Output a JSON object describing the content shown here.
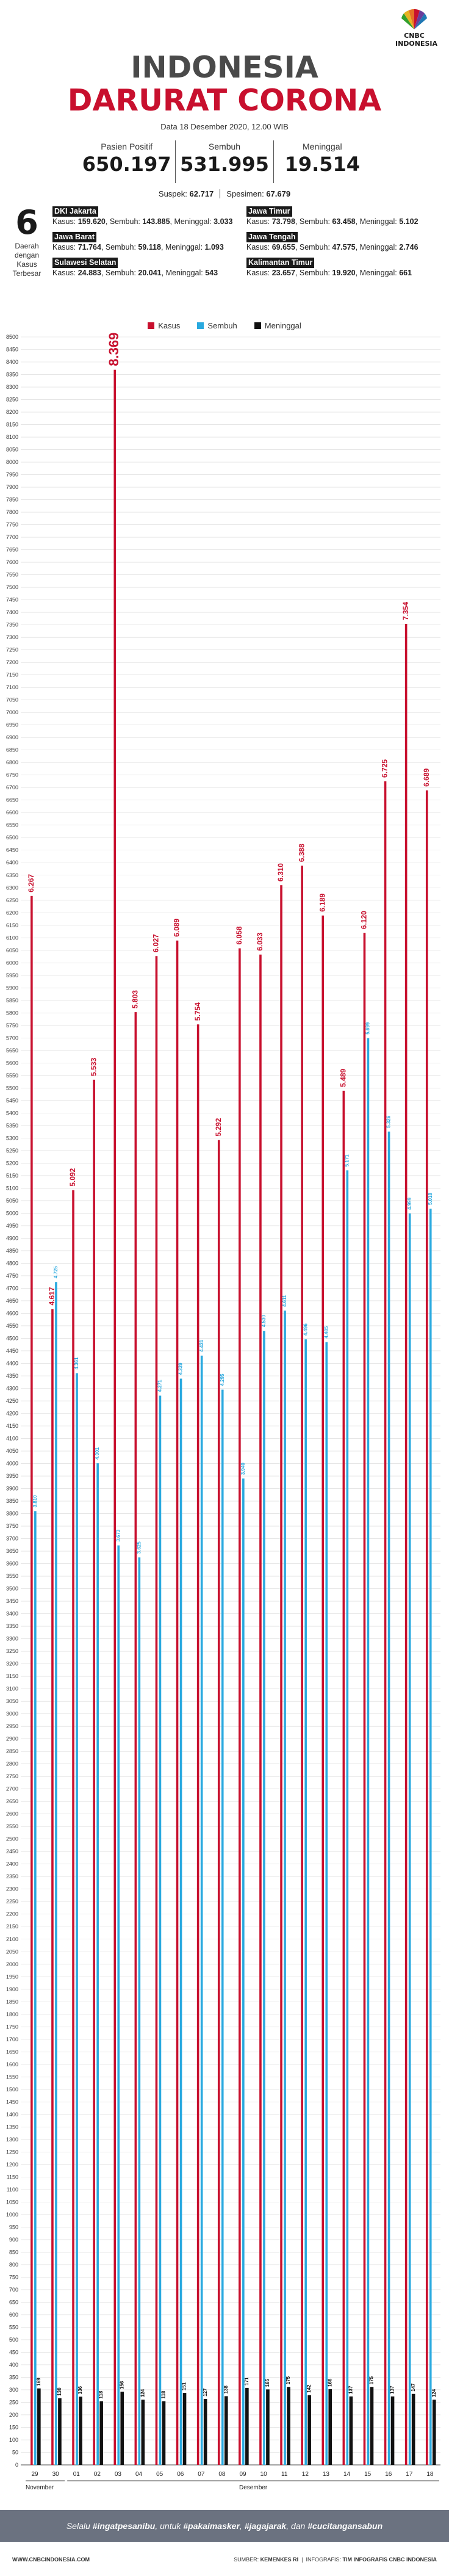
{
  "brand": {
    "logo": "CNBC INDONESIA",
    "logo_icon": "peacock-icon"
  },
  "header": {
    "title_line1": "INDONESIA",
    "title_line2": "DARURAT CORONA",
    "date": "Data 18 Desember 2020, 12.00 WIB"
  },
  "stats": [
    {
      "label": "Pasien Positif",
      "value": "650.197"
    },
    {
      "label": "Sembuh",
      "value": "531.995"
    },
    {
      "label": "Meninggal",
      "value": "19.514"
    }
  ],
  "sub": {
    "suspek_label": "Suspek:",
    "suspek_value": "62.717",
    "spesimen_label": "Spesimen:",
    "spesimen_value": "67.679"
  },
  "rank": {
    "number": "6",
    "label": "Daerah dengan Kasus Terbesar"
  },
  "provinces": [
    {
      "name": "DKI Jakarta",
      "kasus": "159.620",
      "sembuh": "143.885",
      "meninggal": "3.033"
    },
    {
      "name": "Jawa Timur",
      "kasus": "73.798",
      "sembuh": "63.458",
      "meninggal": "5.102"
    },
    {
      "name": "Jawa Barat",
      "kasus": "71.764",
      "sembuh": "59.118",
      "meninggal": "1.093"
    },
    {
      "name": "Jawa Tengah",
      "kasus": "69.655",
      "sembuh": "47.575",
      "meninggal": "2.746"
    },
    {
      "name": "Sulawesi Selatan",
      "kasus": "24.883",
      "sembuh": "20.041",
      "meninggal": "543"
    },
    {
      "name": "Kalimantan Timur",
      "kasus": "23.657",
      "sembuh": "19.920",
      "meninggal": "661"
    }
  ],
  "province_labels": {
    "kasus": "Kasus:",
    "sembuh": "Sembuh:",
    "meninggal": "Meninggal:"
  },
  "colors": {
    "kasus": "#c8102e",
    "sembuh": "#29a9df",
    "meninggal": "#111111",
    "grid": "#d8d8d8"
  },
  "chart_data": {
    "type": "bar",
    "categories": [
      "29",
      "30",
      "01",
      "02",
      "03",
      "04",
      "05",
      "06",
      "07",
      "08",
      "09",
      "10",
      "11",
      "12",
      "13",
      "14",
      "15",
      "16",
      "17",
      "18"
    ],
    "month_groups": [
      {
        "label": "November",
        "from": "29",
        "to": "30"
      },
      {
        "label": "Desember",
        "from": "01",
        "to": "18"
      }
    ],
    "series": [
      {
        "name": "Kasus",
        "values": [
          6267,
          4617,
          5092,
          5533,
          8369,
          5803,
          6027,
          6089,
          5754,
          5292,
          6058,
          6033,
          6310,
          6388,
          6189,
          5489,
          6120,
          6725,
          7354,
          6689
        ],
        "labels": [
          "6.267",
          "4.617",
          "5.092",
          "5.533",
          "8.369",
          "5.803",
          "6.027",
          "6.089",
          "5.754",
          "5.292",
          "6.058",
          "6.033",
          "6.310",
          "6.388",
          "6.189",
          "5.489",
          "6.120",
          "6.725",
          "7.354",
          "6.689"
        ]
      },
      {
        "name": "Sembuh",
        "values": [
          3810,
          4725,
          4361,
          4001,
          3673,
          3625,
          4271,
          4339,
          4431,
          4295,
          3940,
          4530,
          4611,
          4496,
          4485,
          5171,
          5699,
          5326,
          4999,
          5018
        ],
        "labels": [
          "3.810",
          "4.725",
          "4.361",
          "4.001",
          "3.673",
          "3.625",
          "4.271",
          "4.339",
          "4.431",
          "4.295",
          "3.940",
          "4.530",
          "4.611",
          "4.496",
          "4.485",
          "5.171",
          "5.699",
          "5.326",
          "4.999",
          "5.018"
        ]
      },
      {
        "name": "Meninggal",
        "values": [
          169,
          130,
          136,
          118,
          156,
          124,
          118,
          151,
          127,
          138,
          171,
          165,
          175,
          142,
          166,
          137,
          175,
          137,
          147,
          124
        ],
        "labels": [
          "169",
          "130",
          "136",
          "118",
          "156",
          "124",
          "118",
          "151",
          "127",
          "138",
          "171",
          "165",
          "175",
          "142",
          "166",
          "137",
          "175",
          "137",
          "147",
          "124"
        ]
      }
    ],
    "ylim": [
      0,
      8500
    ],
    "ytick_step": 50,
    "grid": true,
    "legend_position": "top-center"
  },
  "footer": {
    "prefix": "Selalu",
    "tag1": "#ingatpesanibu",
    "mid1": ", untuk",
    "tag2": "#pakaimasker",
    "mid2": ",",
    "tag3": "#jagajarak",
    "mid3": ", dan",
    "tag4": "#cucitangansabun"
  },
  "bottom": {
    "left": "WWW.CNBCINDONESIA.COM",
    "source_label": "SUMBER:",
    "source": "KEMENKES RI",
    "infographic_label": "INFOGRAFIS:",
    "infographic": "TIM INFOGRAFIS CNBC INDONESIA"
  }
}
